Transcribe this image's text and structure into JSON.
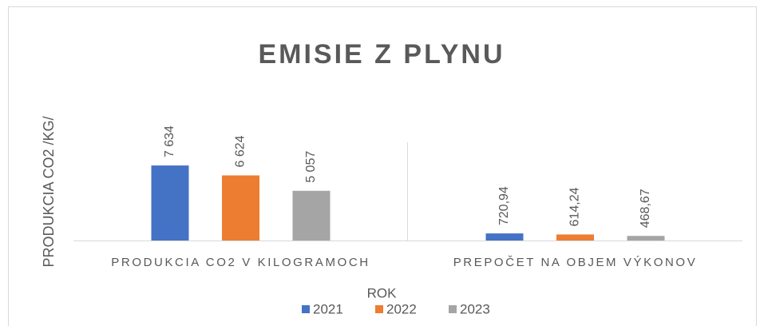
{
  "chart_data": {
    "type": "bar",
    "title": "EMISIE Z PLYNU",
    "y_axis_label": "PRODUKCIA CO2 /KG/",
    "x_axis_label": "ROK",
    "categories": [
      "PRODUKCIA CO2 V KILOGRAMOCH",
      "PREPOČET NA OBJEM VÝKONOV"
    ],
    "series": [
      {
        "name": "2021",
        "color": "#4472c4",
        "values": [
          7634,
          720.94
        ],
        "value_labels": [
          "7 634",
          "720,94"
        ]
      },
      {
        "name": "2022",
        "color": "#ed7d31",
        "values": [
          6624,
          614.24
        ],
        "value_labels": [
          "6 624",
          "614,24"
        ]
      },
      {
        "name": "2023",
        "color": "#a5a5a5",
        "values": [
          5057,
          468.67
        ],
        "value_labels": [
          "5 057",
          "468,67"
        ]
      }
    ],
    "ylim": [
      0,
      10000
    ],
    "legend": "bottom"
  }
}
